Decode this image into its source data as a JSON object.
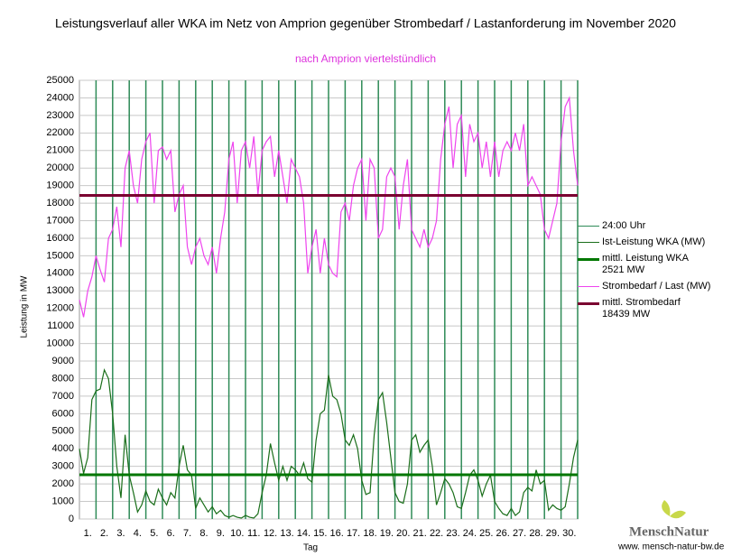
{
  "chart_data": {
    "type": "line",
    "title": "Leistungsverlauf aller WKA im Netz von Amprion gegenüber  Strombedarf / Lastanforderung im November 2020",
    "subtitle": "nach Amprion viertelstündlich",
    "ylabel": "Leistung in MW",
    "xlabel": "Tag",
    "brand": "MenschNatur",
    "website": "www. mensch-natur-bw.de",
    "xlim": [
      0,
      30
    ],
    "ylim": [
      0,
      25000
    ],
    "yticks": [
      0,
      1000,
      2000,
      3000,
      4000,
      5000,
      6000,
      7000,
      8000,
      9000,
      10000,
      11000,
      12000,
      13000,
      14000,
      15000,
      16000,
      17000,
      18000,
      19000,
      20000,
      21000,
      22000,
      23000,
      24000,
      25000
    ],
    "grid": true,
    "xticks": [
      {
        "value": 0.5,
        "label": "1."
      },
      {
        "value": 1.5,
        "label": "2."
      },
      {
        "value": 2.5,
        "label": "3."
      },
      {
        "value": 3.5,
        "label": "4."
      },
      {
        "value": 4.5,
        "label": "5."
      },
      {
        "value": 5.5,
        "label": "6."
      },
      {
        "value": 6.5,
        "label": "7."
      },
      {
        "value": 7.5,
        "label": "8."
      },
      {
        "value": 8.5,
        "label": "9."
      },
      {
        "value": 9.5,
        "label": "10."
      },
      {
        "value": 10.5,
        "label": "11."
      },
      {
        "value": 11.5,
        "label": "12."
      },
      {
        "value": 12.5,
        "label": "13."
      },
      {
        "value": 13.5,
        "label": "14."
      },
      {
        "value": 14.5,
        "label": "15."
      },
      {
        "value": 15.5,
        "label": "16."
      },
      {
        "value": 16.5,
        "label": "17."
      },
      {
        "value": 17.5,
        "label": "18."
      },
      {
        "value": 18.5,
        "label": "19."
      },
      {
        "value": 19.5,
        "label": "20."
      },
      {
        "value": 20.5,
        "label": "21."
      },
      {
        "value": 21.5,
        "label": "22."
      },
      {
        "value": 22.5,
        "label": "23."
      },
      {
        "value": 23.5,
        "label": "24."
      },
      {
        "value": 24.5,
        "label": "25."
      },
      {
        "value": 25.5,
        "label": "26."
      },
      {
        "value": 26.5,
        "label": "27."
      },
      {
        "value": 27.5,
        "label": "28."
      },
      {
        "value": 28.5,
        "label": "29."
      },
      {
        "value": 29.5,
        "label": "30."
      }
    ],
    "day_lines": {
      "name": "24:00 Uhr",
      "color": "#2e8b57",
      "x": [
        1,
        2,
        3,
        4,
        5,
        6,
        7,
        8,
        9,
        10,
        11,
        12,
        13,
        14,
        15,
        16,
        17,
        18,
        19,
        20,
        21,
        22,
        23,
        24,
        25,
        26,
        27,
        28,
        29,
        30
      ]
    },
    "x": [
      0,
      0.25,
      0.5,
      0.75,
      1,
      1.25,
      1.5,
      1.75,
      2,
      2.25,
      2.5,
      2.75,
      3,
      3.25,
      3.5,
      3.75,
      4,
      4.25,
      4.5,
      4.75,
      5,
      5.25,
      5.5,
      5.75,
      6,
      6.25,
      6.5,
      6.75,
      7,
      7.25,
      7.5,
      7.75,
      8,
      8.25,
      8.5,
      8.75,
      9,
      9.25,
      9.5,
      9.75,
      10,
      10.25,
      10.5,
      10.75,
      11,
      11.25,
      11.5,
      11.75,
      12,
      12.25,
      12.5,
      12.75,
      13,
      13.25,
      13.5,
      13.75,
      14,
      14.25,
      14.5,
      14.75,
      15,
      15.25,
      15.5,
      15.75,
      16,
      16.25,
      16.5,
      16.75,
      17,
      17.25,
      17.5,
      17.75,
      18,
      18.25,
      18.5,
      18.75,
      19,
      19.25,
      19.5,
      19.75,
      20,
      20.25,
      20.5,
      20.75,
      21,
      21.25,
      21.5,
      21.75,
      22,
      22.25,
      22.5,
      22.75,
      23,
      23.25,
      23.5,
      23.75,
      24,
      24.25,
      24.5,
      24.75,
      25,
      25.25,
      25.5,
      25.75,
      26,
      26.25,
      26.5,
      26.75,
      27,
      27.25,
      27.5,
      27.75,
      28,
      28.25,
      28.5,
      28.75,
      29,
      29.25,
      29.5,
      29.75,
      30
    ],
    "series": [
      {
        "name": "Ist-Leistung WKA (MW)",
        "color": "#1a6e1a",
        "values": [
          4000,
          2600,
          3500,
          6800,
          7300,
          7400,
          8500,
          8000,
          6000,
          3000,
          1200,
          4800,
          2500,
          1500,
          400,
          800,
          1600,
          1000,
          800,
          1700,
          1200,
          800,
          1500,
          1200,
          3000,
          4200,
          2800,
          2500,
          600,
          1200,
          800,
          400,
          700,
          300,
          500,
          200,
          100,
          200,
          100,
          50,
          200,
          100,
          50,
          300,
          1500,
          2500,
          4300,
          3200,
          2200,
          3000,
          2200,
          3000,
          2800,
          2500,
          3200,
          2300,
          2100,
          4500,
          6000,
          6200,
          8200,
          7000,
          6800,
          6000,
          4500,
          4200,
          4800,
          4000,
          2200,
          1400,
          1500,
          4800,
          6800,
          7200,
          5500,
          3500,
          1500,
          1000,
          900,
          2000,
          4500,
          4800,
          3800,
          4200,
          4500,
          3000,
          800,
          1500,
          2300,
          2000,
          1500,
          700,
          600,
          1500,
          2500,
          2800,
          2200,
          1300,
          2000,
          2500,
          1000,
          600,
          300,
          200,
          600,
          200,
          400,
          1500,
          1800,
          1600,
          2800,
          2000,
          2200,
          500,
          800,
          600,
          500,
          700,
          2000,
          3500,
          4500
        ]
      },
      {
        "name": "Strombedarf / Last (MW)",
        "color": "#ee44ee",
        "values": [
          12500,
          11500,
          13000,
          13800,
          15000,
          14200,
          13500,
          16000,
          16500,
          17800,
          15500,
          20000,
          21000,
          19000,
          18000,
          20500,
          21500,
          22000,
          18000,
          21000,
          21200,
          20500,
          21000,
          17500,
          18500,
          19000,
          15500,
          14500,
          15500,
          16000,
          15000,
          14500,
          15500,
          14000,
          16000,
          17500,
          20500,
          21500,
          18000,
          21000,
          21500,
          20000,
          21800,
          18500,
          21000,
          21500,
          21800,
          19500,
          21000,
          19500,
          18000,
          20500,
          20000,
          19500,
          18000,
          14000,
          15500,
          16500,
          14000,
          16000,
          14500,
          14000,
          13800,
          17500,
          18000,
          17000,
          19000,
          20000,
          20500,
          17000,
          20500,
          20000,
          16000,
          16500,
          19500,
          20000,
          19500,
          16500,
          19000,
          20500,
          16500,
          16000,
          15500,
          16500,
          15500,
          16000,
          17000,
          20500,
          22500,
          23500,
          20000,
          22500,
          23000,
          19500,
          22500,
          21500,
          22000,
          20000,
          21500,
          19500,
          21500,
          19500,
          21000,
          21500,
          21000,
          22000,
          21000,
          22500,
          19000,
          19500,
          19000,
          18500,
          16500,
          16000,
          17000,
          18000,
          21500,
          23500,
          24000,
          21000,
          19000
        ]
      }
    ],
    "means": [
      {
        "name": "mittl. Leistung WKA",
        "value": 2521,
        "value_label": "2521 MW",
        "color": "#007700"
      },
      {
        "name": "mittl. Strombedarf",
        "value": 18439,
        "value_label": "18439 MW",
        "color": "#7a0030"
      }
    ]
  }
}
